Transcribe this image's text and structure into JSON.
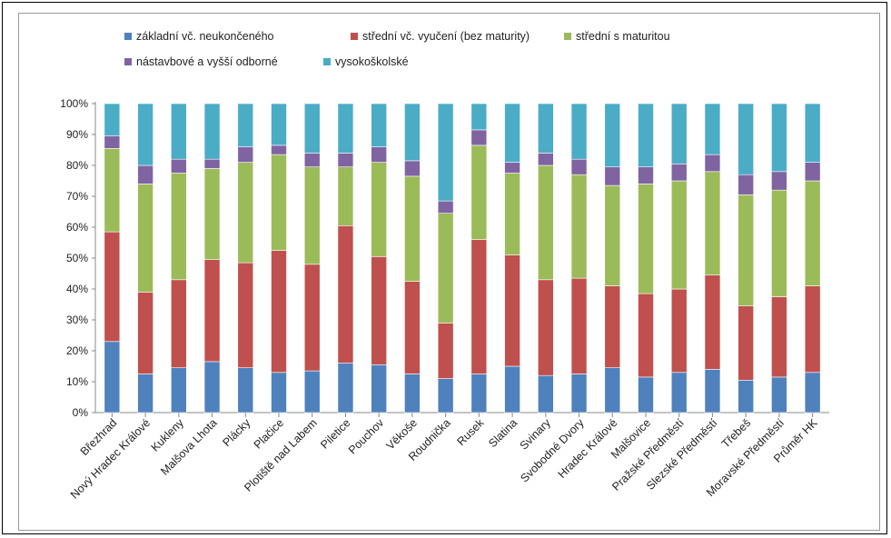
{
  "chart_data": {
    "type": "bar",
    "stacked": "percent",
    "title": "",
    "xlabel": "",
    "ylabel": "",
    "ylim": [
      0,
      100
    ],
    "yticks": [
      "0%",
      "10%",
      "20%",
      "30%",
      "40%",
      "50%",
      "60%",
      "70%",
      "80%",
      "90%",
      "100%"
    ],
    "grid": false,
    "legend_position": "top",
    "categories": [
      "Březhrad",
      "Nový Hradec Králové",
      "Kukleny",
      "Malšova Lhota",
      "Plácky",
      "Plačice",
      "Plotiště nad Labem",
      "Piletice",
      "Pouchov",
      "Věkoše",
      "Roudnička",
      "Rusek",
      "Slatina",
      "Svinary",
      "Svobodné Dvory",
      "Hradec Králové",
      "Malšovice",
      "Pražské Předměstí",
      "Slezské Předměstí",
      "Třebeš",
      "Moravské Předměstí",
      "Průměr HK"
    ],
    "series": [
      {
        "name": "základní vč. neukončeného",
        "color": "#4f81bd",
        "values": [
          23,
          12.5,
          14.5,
          16.5,
          14.5,
          13,
          13.5,
          16,
          15.5,
          12.5,
          11,
          12.5,
          15,
          12,
          12.5,
          14.5,
          11.5,
          13,
          14,
          10.5,
          11.5,
          13
        ]
      },
      {
        "name": "střední vč. vyučení (bez maturity)",
        "color": "#c0504d",
        "values": [
          35.5,
          26.5,
          28.5,
          33,
          34,
          39.5,
          34.5,
          44.5,
          35,
          30,
          18,
          43.5,
          36,
          31,
          31,
          26.5,
          27,
          27,
          30.5,
          24,
          26,
          28
        ]
      },
      {
        "name": "střední s maturitou",
        "color": "#9bbb59",
        "values": [
          27,
          35,
          34.5,
          29.5,
          32.5,
          31,
          31.5,
          19,
          30.5,
          34,
          35.5,
          30.5,
          26.5,
          37,
          33.5,
          32.5,
          35.5,
          35,
          33.5,
          36,
          34.5,
          34
        ]
      },
      {
        "name": "nástavbové a vyšší odborné",
        "color": "#8064a2",
        "values": [
          4,
          6,
          4.5,
          3,
          5,
          3,
          4.5,
          4.5,
          5,
          5,
          4,
          5,
          3.5,
          4,
          5,
          6,
          5.5,
          5.5,
          5.5,
          6.5,
          6,
          6
        ]
      },
      {
        "name": "vysokoškolské",
        "color": "#4bacc6",
        "values": [
          10.5,
          20,
          18,
          18,
          14,
          13.5,
          16,
          16,
          14,
          18.5,
          31.5,
          8.5,
          19,
          16,
          18,
          20.5,
          20.5,
          19.5,
          16.5,
          23,
          22,
          19
        ]
      }
    ]
  }
}
